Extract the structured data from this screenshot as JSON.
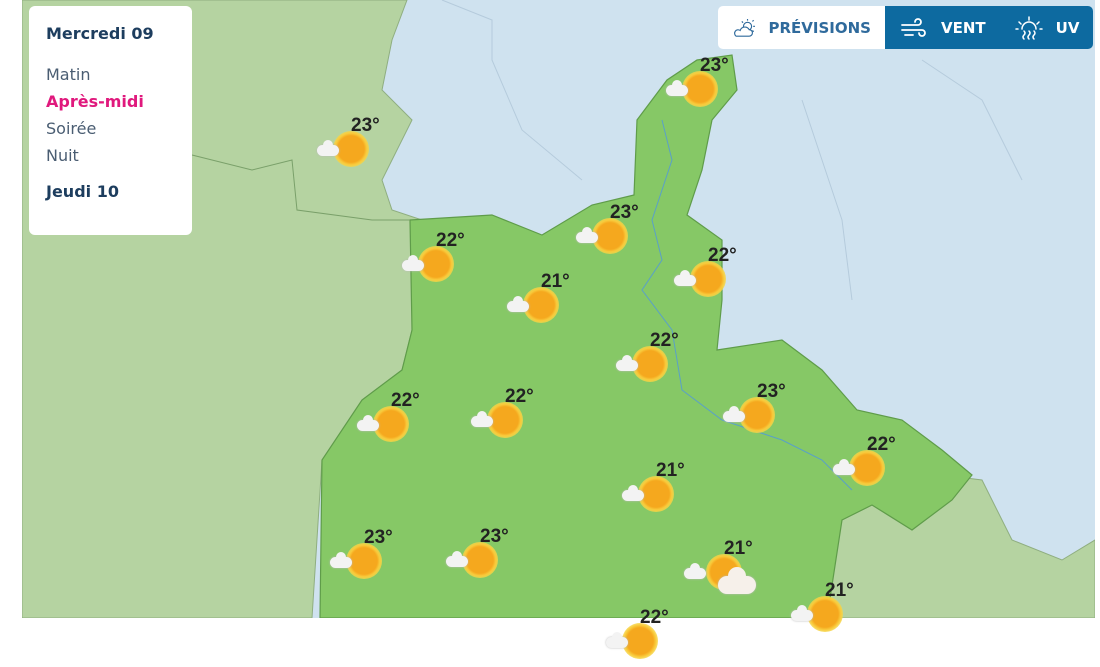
{
  "panel": {
    "day": "Mercredi 09",
    "slots": [
      "Matin",
      "Après-midi",
      "Soirée",
      "Nuit"
    ],
    "active_slot": "Après-midi",
    "next_day": "Jeudi 10"
  },
  "tabs": [
    {
      "label": "PRÉVISIONS",
      "icon": "sun-cloud-icon",
      "active": true
    },
    {
      "label": "VENT",
      "icon": "wind-icon",
      "active": false
    },
    {
      "label": "UV",
      "icon": "uv-sun-icon",
      "active": false
    }
  ],
  "colors": {
    "accent": "#e0197d",
    "tab_active_bg": "#0d6aa0",
    "region": "#86c866",
    "neighbor": "#b5d3a1",
    "water": "#cfe2ef"
  },
  "markers": [
    {
      "temp": "23°",
      "icon": "sun-cloud"
    },
    {
      "temp": "23°",
      "icon": "sun-cloud"
    },
    {
      "temp": "23°",
      "icon": "sun-cloud"
    },
    {
      "temp": "22°",
      "icon": "sun-cloud"
    },
    {
      "temp": "22°",
      "icon": "sun-cloud"
    },
    {
      "temp": "21°",
      "icon": "sun-cloud"
    },
    {
      "temp": "22°",
      "icon": "sun-cloud"
    },
    {
      "temp": "22°",
      "icon": "sun-cloud"
    },
    {
      "temp": "22°",
      "icon": "sun-cloud"
    },
    {
      "temp": "23°",
      "icon": "sun-cloud"
    },
    {
      "temp": "22°",
      "icon": "sun-cloud"
    },
    {
      "temp": "21°",
      "icon": "sun-cloud"
    },
    {
      "temp": "23°",
      "icon": "sun-cloud"
    },
    {
      "temp": "23°",
      "icon": "sun-cloud"
    },
    {
      "temp": "21°",
      "icon": "sun-big-cloud"
    },
    {
      "temp": "21°",
      "icon": "sun-cloud"
    },
    {
      "temp": "22°",
      "icon": "sun-cloud"
    }
  ]
}
